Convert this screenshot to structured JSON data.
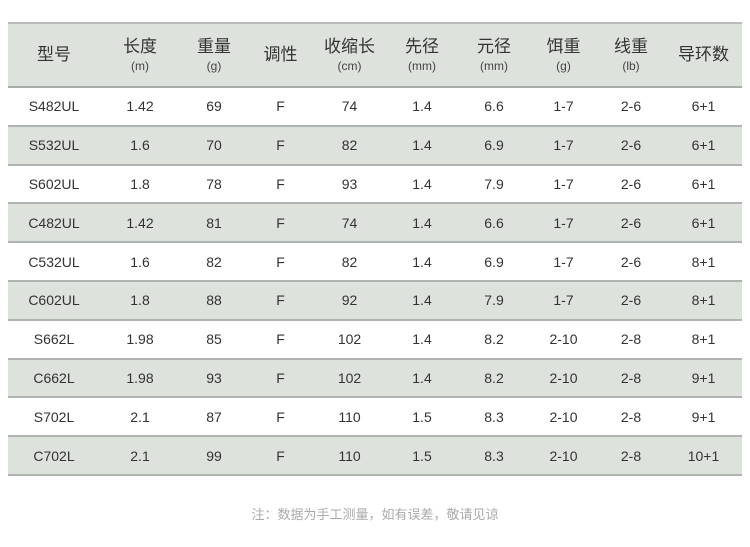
{
  "columns": [
    {
      "label": "型号",
      "unit": ""
    },
    {
      "label": "长度",
      "unit": "(m)"
    },
    {
      "label": "重量",
      "unit": "(g)"
    },
    {
      "label": "调性",
      "unit": ""
    },
    {
      "label": "收缩长",
      "unit": "(cm)"
    },
    {
      "label": "先径",
      "unit": "(mm)"
    },
    {
      "label": "元径",
      "unit": "(mm)"
    },
    {
      "label": "饵重",
      "unit": "(g)"
    },
    {
      "label": "线重",
      "unit": "(lb)"
    },
    {
      "label": "导环数",
      "unit": ""
    }
  ],
  "rows": [
    [
      "S482UL",
      "1.42",
      "69",
      "F",
      "74",
      "1.4",
      "6.6",
      "1-7",
      "2-6",
      "6+1"
    ],
    [
      "S532UL",
      "1.6",
      "70",
      "F",
      "82",
      "1.4",
      "6.9",
      "1-7",
      "2-6",
      "6+1"
    ],
    [
      "S602UL",
      "1.8",
      "78",
      "F",
      "93",
      "1.4",
      "7.9",
      "1-7",
      "2-6",
      "6+1"
    ],
    [
      "C482UL",
      "1.42",
      "81",
      "F",
      "74",
      "1.4",
      "6.6",
      "1-7",
      "2-6",
      "6+1"
    ],
    [
      "C532UL",
      "1.6",
      "82",
      "F",
      "82",
      "1.4",
      "6.9",
      "1-7",
      "2-6",
      "8+1"
    ],
    [
      "C602UL",
      "1.8",
      "88",
      "F",
      "92",
      "1.4",
      "7.9",
      "1-7",
      "2-6",
      "8+1"
    ],
    [
      "S662L",
      "1.98",
      "85",
      "F",
      "102",
      "1.4",
      "8.2",
      "2-10",
      "2-8",
      "8+1"
    ],
    [
      "C662L",
      "1.98",
      "93",
      "F",
      "102",
      "1.4",
      "8.2",
      "2-10",
      "2-8",
      "9+1"
    ],
    [
      "S702L",
      "2.1",
      "87",
      "F",
      "110",
      "1.5",
      "8.3",
      "2-10",
      "2-8",
      "9+1"
    ],
    [
      "C702L",
      "2.1",
      "99",
      "F",
      "110",
      "1.5",
      "8.3",
      "2-10",
      "2-8",
      "10+1"
    ]
  ],
  "note": "注：数据为手工测量，如有误差，敬请见谅",
  "colors": {
    "header_bg": "#dde2dd",
    "alt_row_bg": "#dde2dd",
    "note_text": "#aaaaaa"
  }
}
